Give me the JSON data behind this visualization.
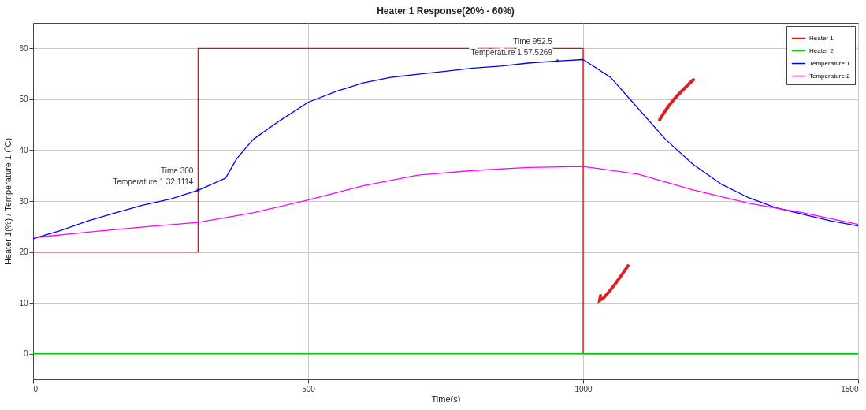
{
  "chart_data": {
    "type": "line",
    "title": "Heater 1 Response(20% - 60%)",
    "xlabel": "Time(s)",
    "ylabel": "Heater 1(%) / Temperature 1 (˚C)",
    "xlim": [
      0,
      1500
    ],
    "xticks": [
      0,
      500,
      {
        "value": 1000,
        "label": "1000"
      },
      {
        "value": 1500,
        "label": "1500"
      }
    ],
    "ylim": [
      -5,
      65
    ],
    "yticks": [
      0,
      10,
      20,
      30,
      40,
      50,
      60
    ],
    "grid": true,
    "legend": "top right",
    "marker": "none",
    "line_style": "solid",
    "series": [
      {
        "name": "Heater 1",
        "color": "#ff0000",
        "x": [
          0,
          300,
          300,
          1000,
          1000,
          1500
        ],
        "values": [
          20,
          20,
          60,
          60,
          0,
          0
        ]
      },
      {
        "name": "Heater 2",
        "color": "#00cc00",
        "x": [
          0,
          1500
        ],
        "values": [
          0,
          0
        ]
      },
      {
        "name": "Temperature:1",
        "color": "#0000ff",
        "x": [
          0,
          50,
          100,
          150,
          200,
          250,
          300,
          350,
          370,
          400,
          450,
          500,
          550,
          600,
          650,
          700,
          750,
          800,
          850,
          900,
          952.5,
          1000,
          1050,
          1100,
          1150,
          1200,
          1250,
          1300,
          1350,
          1400,
          1450,
          1500
        ],
        "values": [
          22.6,
          24.2,
          26.1,
          27.7,
          29.2,
          30.4,
          32.1,
          34.5,
          38.3,
          42.1,
          45.9,
          49.4,
          51.5,
          53.2,
          54.3,
          54.9,
          55.5,
          56.1,
          56.5,
          57.1,
          57.5,
          57.8,
          54.3,
          48.2,
          42.1,
          37.2,
          33.4,
          30.7,
          28.7,
          27.4,
          26.1,
          25.1
        ]
      },
      {
        "name": "Temperature:2",
        "color": "#ff00ff",
        "x": [
          0,
          100,
          200,
          300,
          400,
          500,
          600,
          700,
          800,
          900,
          1000,
          1100,
          1200,
          1300,
          1400,
          1500
        ],
        "values": [
          22.8,
          23.9,
          24.9,
          25.8,
          27.7,
          30.2,
          33.0,
          35.1,
          36.0,
          36.6,
          36.8,
          35.3,
          32.2,
          29.6,
          27.7,
          25.4
        ]
      }
    ],
    "annotations": [
      {
        "text": "Time 300\nTemperature 1 32.1114",
        "x": 300,
        "y": 32.1114
      },
      {
        "text": "Time 952.5\nTemperature 1 57.5269",
        "x": 952.5,
        "y": 57.5269
      }
    ]
  }
}
